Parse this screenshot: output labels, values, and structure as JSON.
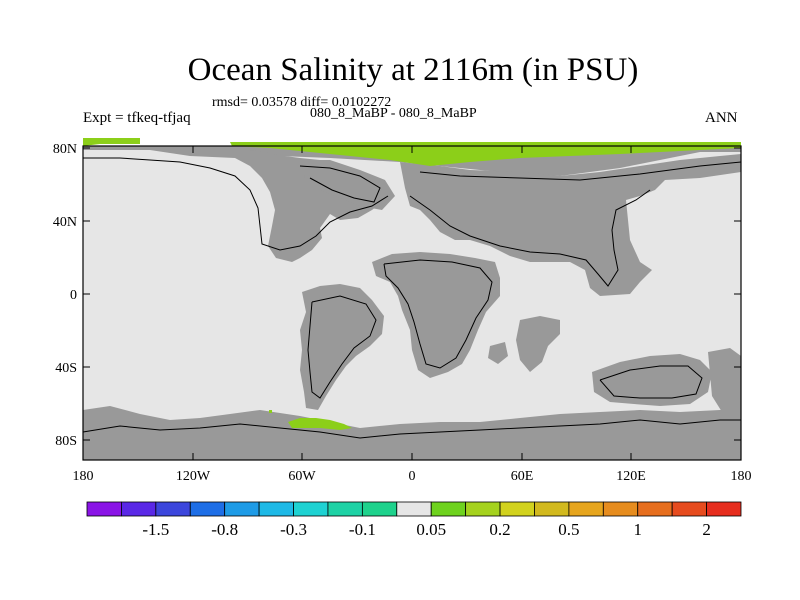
{
  "title": "Ocean Salinity at 2116m (in PSU)",
  "stats": "rmsd= 0.03578 diff= 0.0102272",
  "subtitle": "080_8_MaBP - 080_8_MaBP",
  "expt_label": "Expt = tfkeq-tfjaq",
  "season": "ANN",
  "lat_ticks": [
    "80N",
    "40N",
    "0",
    "40S",
    "80S"
  ],
  "lon_ticks": [
    "180",
    "120W",
    "60W",
    "0",
    "60E",
    "120E",
    "180"
  ],
  "colorbar": {
    "colors": [
      "#8a14e6",
      "#5a28e6",
      "#3c46dc",
      "#1e6ee6",
      "#1e9be6",
      "#1eb9e6",
      "#1ed2d2",
      "#1ed2a5",
      "#1ed28c",
      "#e6e6e6",
      "#6ed21e",
      "#a5d21e",
      "#d2d21e",
      "#d2b91e",
      "#e6a51e",
      "#e68c1e",
      "#e66e1e",
      "#e64b1e",
      "#e62d1e"
    ],
    "labels": [
      "-1.5",
      "-0.8",
      "-0.3",
      "-0.1",
      "0.05",
      "0.2",
      "0.5",
      "1",
      "2"
    ]
  },
  "map_colors": {
    "ocean": "#e6e6e6",
    "land": "#999999",
    "positive_anomaly": "#8ccf19",
    "coast_line": "#000000"
  }
}
